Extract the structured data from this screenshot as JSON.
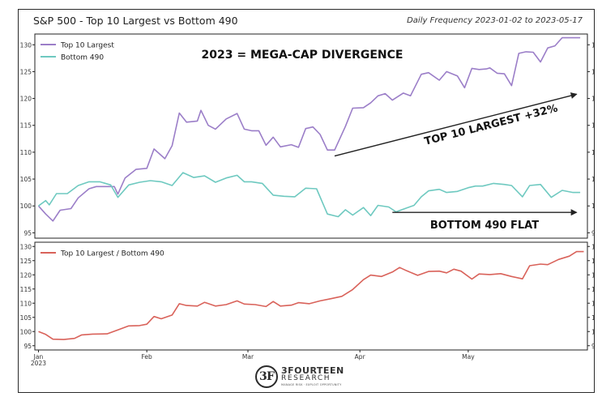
{
  "header": {
    "title": "S&P 500 - Top 10 Largest vs Bottom 490",
    "subtitle": "Daily Frequency 2023-01-02 to 2023-05-17"
  },
  "logo": {
    "name": "3FOURTEEN",
    "sub": "RESEARCH",
    "tagline": "MANAGE RISK · EXPLOIT OPPORTUNITY"
  },
  "colors": {
    "top10": "#9b7ec8",
    "bottom490": "#6ec9c0",
    "ratio": "#d9625a",
    "text": "#222222"
  },
  "chart_data": [
    {
      "type": "line",
      "title": "2023 = MEGA-CAP DIVERGENCE",
      "ylim": [
        94,
        132
      ],
      "yticks": [
        95,
        100,
        105,
        110,
        115,
        120,
        125,
        130
      ],
      "grid": false,
      "legend": "top-left",
      "series": [
        {
          "name": "Top 10 Largest",
          "color_key": "top10",
          "points": [
            [
              "2023-01-02",
              100
            ],
            [
              "2023-01-04",
              98.5
            ],
            [
              "2023-01-06",
              97.2
            ],
            [
              "2023-01-08",
              99.2
            ],
            [
              "2023-01-11",
              99.5
            ],
            [
              "2023-01-13",
              101.5
            ],
            [
              "2023-01-16",
              103.2
            ],
            [
              "2023-01-18",
              103.6
            ],
            [
              "2023-01-20",
              103.6
            ],
            [
              "2023-01-23",
              103.6
            ],
            [
              "2023-01-24",
              102.2
            ],
            [
              "2023-01-26",
              105.2
            ],
            [
              "2023-01-29",
              106.8
            ],
            [
              "2023-02-01",
              107.0
            ],
            [
              "2023-02-03",
              110.6
            ],
            [
              "2023-02-06",
              108.8
            ],
            [
              "2023-02-08",
              111.2
            ],
            [
              "2023-02-10",
              117.3
            ],
            [
              "2023-02-12",
              115.6
            ],
            [
              "2023-02-15",
              115.8
            ],
            [
              "2023-02-16",
              117.8
            ],
            [
              "2023-02-18",
              115.0
            ],
            [
              "2023-02-20",
              114.3
            ],
            [
              "2023-02-23",
              116.2
            ],
            [
              "2023-02-26",
              117.2
            ],
            [
              "2023-02-28",
              114.3
            ],
            [
              "2023-03-02",
              114.0
            ],
            [
              "2023-03-04",
              114.0
            ],
            [
              "2023-03-06",
              111.3
            ],
            [
              "2023-03-08",
              112.8
            ],
            [
              "2023-03-10",
              111.0
            ],
            [
              "2023-03-13",
              111.4
            ],
            [
              "2023-03-15",
              110.9
            ],
            [
              "2023-03-17",
              114.4
            ],
            [
              "2023-03-19",
              114.7
            ],
            [
              "2023-03-21",
              113.3
            ],
            [
              "2023-03-23",
              110.4
            ],
            [
              "2023-03-25",
              110.4
            ],
            [
              "2023-03-28",
              114.8
            ],
            [
              "2023-03-30",
              118.2
            ],
            [
              "2023-04-02",
              118.3
            ],
            [
              "2023-04-04",
              119.2
            ],
            [
              "2023-04-06",
              120.5
            ],
            [
              "2023-04-08",
              120.9
            ],
            [
              "2023-04-10",
              119.7
            ],
            [
              "2023-04-13",
              121.0
            ],
            [
              "2023-04-15",
              120.5
            ],
            [
              "2023-04-18",
              124.5
            ],
            [
              "2023-04-20",
              124.8
            ],
            [
              "2023-04-23",
              123.4
            ],
            [
              "2023-04-25",
              125.0
            ],
            [
              "2023-04-28",
              124.2
            ],
            [
              "2023-04-30",
              122.0
            ],
            [
              "2023-05-02",
              125.6
            ],
            [
              "2023-05-04",
              125.4
            ],
            [
              "2023-05-06",
              125.5
            ],
            [
              "2023-05-07",
              125.7
            ],
            [
              "2023-05-09",
              124.7
            ],
            [
              "2023-05-11",
              124.6
            ],
            [
              "2023-05-13",
              122.4
            ],
            [
              "2023-05-15",
              128.4
            ],
            [
              "2023-05-17",
              128.7
            ],
            [
              "2023-05-19",
              128.6
            ],
            [
              "2023-05-21",
              126.8
            ],
            [
              "2023-05-23",
              129.4
            ],
            [
              "2023-05-25",
              129.8
            ],
            [
              "2023-05-27",
              131.3
            ],
            [
              "2023-05-30",
              131.3
            ],
            [
              "2023-06-01",
              131.3
            ]
          ]
        },
        {
          "name": "Bottom 490",
          "color_key": "bottom490",
          "points": [
            [
              "2023-01-02",
              100
            ],
            [
              "2023-01-04",
              101.0
            ],
            [
              "2023-01-05",
              100.2
            ],
            [
              "2023-01-07",
              102.3
            ],
            [
              "2023-01-10",
              102.3
            ],
            [
              "2023-01-13",
              103.8
            ],
            [
              "2023-01-16",
              104.5
            ],
            [
              "2023-01-19",
              104.5
            ],
            [
              "2023-01-22",
              103.9
            ],
            [
              "2023-01-24",
              101.6
            ],
            [
              "2023-01-27",
              103.9
            ],
            [
              "2023-01-30",
              104.4
            ],
            [
              "2023-02-02",
              104.7
            ],
            [
              "2023-02-05",
              104.5
            ],
            [
              "2023-02-08",
              103.8
            ],
            [
              "2023-02-11",
              106.2
            ],
            [
              "2023-02-14",
              105.3
            ],
            [
              "2023-02-17",
              105.6
            ],
            [
              "2023-02-20",
              104.4
            ],
            [
              "2023-02-23",
              105.2
            ],
            [
              "2023-02-26",
              105.7
            ],
            [
              "2023-02-28",
              104.5
            ],
            [
              "2023-03-02",
              104.5
            ],
            [
              "2023-03-05",
              104.2
            ],
            [
              "2023-03-08",
              102.0
            ],
            [
              "2023-03-11",
              101.8
            ],
            [
              "2023-03-14",
              101.7
            ],
            [
              "2023-03-17",
              103.3
            ],
            [
              "2023-03-20",
              103.2
            ],
            [
              "2023-03-23",
              98.5
            ],
            [
              "2023-03-26",
              98.0
            ],
            [
              "2023-03-28",
              99.3
            ],
            [
              "2023-03-30",
              98.3
            ],
            [
              "2023-04-02",
              99.7
            ],
            [
              "2023-04-04",
              98.2
            ],
            [
              "2023-04-06",
              100.1
            ],
            [
              "2023-04-09",
              99.8
            ],
            [
              "2023-04-11",
              98.9
            ],
            [
              "2023-04-13",
              99.4
            ],
            [
              "2023-04-16",
              100.1
            ],
            [
              "2023-04-18",
              101.7
            ],
            [
              "2023-04-20",
              102.8
            ],
            [
              "2023-04-23",
              103.1
            ],
            [
              "2023-04-25",
              102.5
            ],
            [
              "2023-04-28",
              102.7
            ],
            [
              "2023-05-01",
              103.4
            ],
            [
              "2023-05-03",
              103.7
            ],
            [
              "2023-05-05",
              103.7
            ],
            [
              "2023-05-08",
              104.2
            ],
            [
              "2023-05-11",
              104.0
            ],
            [
              "2023-05-13",
              103.8
            ],
            [
              "2023-05-16",
              101.7
            ],
            [
              "2023-05-18",
              103.8
            ],
            [
              "2023-05-21",
              104.0
            ],
            [
              "2023-05-24",
              101.6
            ],
            [
              "2023-05-27",
              102.9
            ],
            [
              "2023-05-30",
              102.5
            ],
            [
              "2023-06-01",
              102.5
            ]
          ]
        }
      ],
      "annotations": [
        {
          "text": "TOP 10 LARGEST +32%",
          "from": [
            "2023-03-25",
            109.3
          ],
          "to": [
            "2023-05-31",
            120.8
          ]
        },
        {
          "text": "BOTTOM 490 FLAT",
          "from": [
            "2023-04-10",
            98.8
          ],
          "to": [
            "2023-05-31",
            98.8
          ]
        }
      ]
    },
    {
      "type": "line",
      "ylim": [
        93.5,
        131.5
      ],
      "yticks": [
        95,
        100,
        105,
        110,
        115,
        120,
        125,
        130
      ],
      "grid": false,
      "legend": "top-left",
      "series": [
        {
          "name": "Top 10 Largest / Bottom 490",
          "color_key": "ratio",
          "points": [
            [
              "2023-01-02",
              100
            ],
            [
              "2023-01-04",
              99.0
            ],
            [
              "2023-01-06",
              97.3
            ],
            [
              "2023-01-09",
              97.2
            ],
            [
              "2023-01-12",
              97.6
            ],
            [
              "2023-01-14",
              98.8
            ],
            [
              "2023-01-17",
              99.1
            ],
            [
              "2023-01-21",
              99.2
            ],
            [
              "2023-01-24",
              100.6
            ],
            [
              "2023-01-27",
              102.0
            ],
            [
              "2023-01-30",
              102.1
            ],
            [
              "2023-02-01",
              102.6
            ],
            [
              "2023-02-03",
              105.3
            ],
            [
              "2023-02-05",
              104.5
            ],
            [
              "2023-02-08",
              105.8
            ],
            [
              "2023-02-10",
              109.8
            ],
            [
              "2023-02-12",
              109.2
            ],
            [
              "2023-02-15",
              109.0
            ],
            [
              "2023-02-17",
              110.3
            ],
            [
              "2023-02-20",
              109.0
            ],
            [
              "2023-02-23",
              109.5
            ],
            [
              "2023-02-26",
              110.8
            ],
            [
              "2023-02-28",
              109.7
            ],
            [
              "2023-03-03",
              109.5
            ],
            [
              "2023-03-06",
              108.8
            ],
            [
              "2023-03-08",
              110.6
            ],
            [
              "2023-03-10",
              109.0
            ],
            [
              "2023-03-13",
              109.3
            ],
            [
              "2023-03-15",
              110.2
            ],
            [
              "2023-03-18",
              109.8
            ],
            [
              "2023-03-21",
              110.8
            ],
            [
              "2023-03-24",
              111.6
            ],
            [
              "2023-03-27",
              112.4
            ],
            [
              "2023-03-30",
              114.8
            ],
            [
              "2023-04-02",
              118.3
            ],
            [
              "2023-04-04",
              119.9
            ],
            [
              "2023-04-07",
              119.4
            ],
            [
              "2023-04-10",
              121.0
            ],
            [
              "2023-04-12",
              122.6
            ],
            [
              "2023-04-14",
              121.4
            ],
            [
              "2023-04-17",
              119.8
            ],
            [
              "2023-04-20",
              121.2
            ],
            [
              "2023-04-23",
              121.3
            ],
            [
              "2023-04-25",
              120.7
            ],
            [
              "2023-04-27",
              122.0
            ],
            [
              "2023-04-29",
              121.3
            ],
            [
              "2023-05-02",
              118.5
            ],
            [
              "2023-05-04",
              120.3
            ],
            [
              "2023-05-07",
              120.1
            ],
            [
              "2023-05-10",
              120.4
            ],
            [
              "2023-05-13",
              119.4
            ],
            [
              "2023-05-16",
              118.6
            ],
            [
              "2023-05-18",
              123.2
            ],
            [
              "2023-05-21",
              123.8
            ],
            [
              "2023-05-23",
              123.6
            ],
            [
              "2023-05-26",
              125.4
            ],
            [
              "2023-05-29",
              126.6
            ],
            [
              "2023-05-31",
              128.2
            ],
            [
              "2023-06-02",
              128.2
            ]
          ]
        }
      ],
      "xticks": [
        {
          "date": "2023-01-02",
          "label": "Jan\n2023"
        },
        {
          "date": "2023-02-01",
          "label": "Feb"
        },
        {
          "date": "2023-03-01",
          "label": "Mar"
        },
        {
          "date": "2023-04-01",
          "label": "Apr"
        },
        {
          "date": "2023-05-01",
          "label": "May"
        }
      ]
    }
  ]
}
